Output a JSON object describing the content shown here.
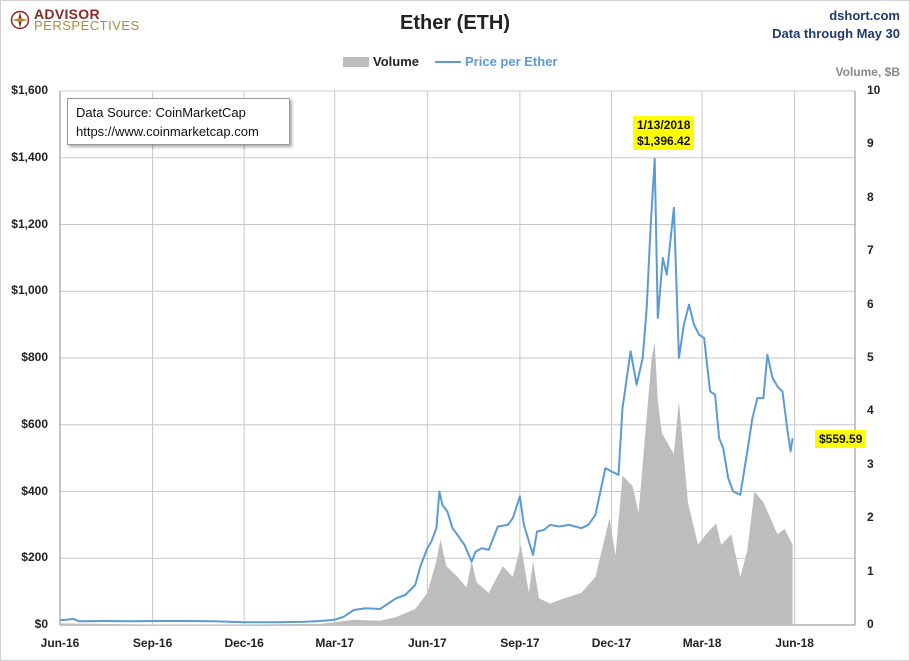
{
  "header": {
    "logo_line1": "ADVISOR",
    "logo_line2": "PERSPECTIVES",
    "title": "Ether (ETH)",
    "site": "dshort.com",
    "data_through": "Data through May 30"
  },
  "legend": {
    "volume_label": "Volume",
    "price_label": "Price per Ether"
  },
  "source_box": {
    "line1": "Data Source: CoinMarketCap",
    "line2": "https://www.coinmarketcap.com"
  },
  "colors": {
    "price_line": "#5b9bd5",
    "volume_area": "#bdbdbd",
    "callout_bg": "#ffff00"
  },
  "chart_data": {
    "type": "line",
    "title": "Ether (ETH)",
    "x_axis": {
      "range": [
        "2016-06-01",
        "2018-07-31"
      ],
      "tick_labels": [
        "Jun-16",
        "Sep-16",
        "Dec-16",
        "Mar-17",
        "Jun-17",
        "Sep-17",
        "Dec-17",
        "Mar-18",
        "Jun-18"
      ],
      "tick_dates": [
        "2016-06-01",
        "2016-09-01",
        "2016-12-01",
        "2017-03-01",
        "2017-06-01",
        "2017-09-01",
        "2017-12-01",
        "2018-03-01",
        "2018-06-01"
      ]
    },
    "y_left": {
      "range": [
        0,
        1600
      ],
      "tick_labels": [
        "$0",
        "$200",
        "$400",
        "$600",
        "$800",
        "$1,000",
        "$1,200",
        "$1,400",
        "$1,600"
      ],
      "tick_values": [
        0,
        200,
        400,
        600,
        800,
        1000,
        1200,
        1400,
        1600
      ]
    },
    "y_right": {
      "title": "Volume, $B",
      "range": [
        0,
        10
      ],
      "tick_labels": [
        "0",
        "1",
        "2",
        "3",
        "4",
        "5",
        "6",
        "7",
        "8",
        "9",
        "10"
      ],
      "tick_values": [
        0,
        1,
        2,
        3,
        4,
        5,
        6,
        7,
        8,
        9,
        10
      ]
    },
    "grid": true,
    "legend_position": "top-center",
    "series": [
      {
        "name": "Price per Ether",
        "axis": "left",
        "points": [
          [
            "2016-06-01",
            14
          ],
          [
            "2016-06-15",
            18
          ],
          [
            "2016-06-20",
            11
          ],
          [
            "2016-07-15",
            12
          ],
          [
            "2016-08-15",
            11
          ],
          [
            "2016-09-01",
            12
          ],
          [
            "2016-10-01",
            12
          ],
          [
            "2016-11-01",
            11
          ],
          [
            "2016-12-01",
            8
          ],
          [
            "2017-01-01",
            8
          ],
          [
            "2017-01-31",
            10
          ],
          [
            "2017-02-15",
            12
          ],
          [
            "2017-03-01",
            16
          ],
          [
            "2017-03-10",
            25
          ],
          [
            "2017-03-20",
            45
          ],
          [
            "2017-04-01",
            50
          ],
          [
            "2017-04-15",
            48
          ],
          [
            "2017-05-01",
            80
          ],
          [
            "2017-05-10",
            90
          ],
          [
            "2017-05-20",
            120
          ],
          [
            "2017-05-25",
            175
          ],
          [
            "2017-06-01",
            230
          ],
          [
            "2017-06-05",
            250
          ],
          [
            "2017-06-10",
            290
          ],
          [
            "2017-06-13",
            400
          ],
          [
            "2017-06-16",
            360
          ],
          [
            "2017-06-21",
            340
          ],
          [
            "2017-06-26",
            290
          ],
          [
            "2017-07-01",
            270
          ],
          [
            "2017-07-08",
            240
          ],
          [
            "2017-07-15",
            190
          ],
          [
            "2017-07-19",
            220
          ],
          [
            "2017-07-25",
            230
          ],
          [
            "2017-08-01",
            225
          ],
          [
            "2017-08-10",
            295
          ],
          [
            "2017-08-20",
            300
          ],
          [
            "2017-08-25",
            320
          ],
          [
            "2017-09-01",
            385
          ],
          [
            "2017-09-05",
            300
          ],
          [
            "2017-09-14",
            210
          ],
          [
            "2017-09-18",
            280
          ],
          [
            "2017-09-25",
            285
          ],
          [
            "2017-10-01",
            300
          ],
          [
            "2017-10-10",
            295
          ],
          [
            "2017-10-20",
            300
          ],
          [
            "2017-11-01",
            290
          ],
          [
            "2017-11-08",
            300
          ],
          [
            "2017-11-15",
            330
          ],
          [
            "2017-11-25",
            470
          ],
          [
            "2017-12-01",
            460
          ],
          [
            "2017-12-08",
            450
          ],
          [
            "2017-12-12",
            650
          ],
          [
            "2017-12-20",
            820
          ],
          [
            "2017-12-26",
            720
          ],
          [
            "2018-01-01",
            800
          ],
          [
            "2018-01-05",
            950
          ],
          [
            "2018-01-09",
            1200
          ],
          [
            "2018-01-13",
            1396.42
          ],
          [
            "2018-01-16",
            920
          ],
          [
            "2018-01-21",
            1100
          ],
          [
            "2018-01-25",
            1050
          ],
          [
            "2018-02-01",
            1250
          ],
          [
            "2018-02-06",
            800
          ],
          [
            "2018-02-11",
            900
          ],
          [
            "2018-02-16",
            960
          ],
          [
            "2018-02-21",
            900
          ],
          [
            "2018-02-26",
            870
          ],
          [
            "2018-03-03",
            860
          ],
          [
            "2018-03-09",
            700
          ],
          [
            "2018-03-14",
            690
          ],
          [
            "2018-03-18",
            560
          ],
          [
            "2018-03-22",
            530
          ],
          [
            "2018-03-27",
            440
          ],
          [
            "2018-04-01",
            400
          ],
          [
            "2018-04-08",
            390
          ],
          [
            "2018-04-15",
            520
          ],
          [
            "2018-04-20",
            620
          ],
          [
            "2018-04-25",
            680
          ],
          [
            "2018-05-01",
            680
          ],
          [
            "2018-05-05",
            810
          ],
          [
            "2018-05-10",
            740
          ],
          [
            "2018-05-16",
            710
          ],
          [
            "2018-05-20",
            700
          ],
          [
            "2018-05-25",
            580
          ],
          [
            "2018-05-28",
            520
          ],
          [
            "2018-05-30",
            559.59
          ]
        ]
      },
      {
        "name": "Volume",
        "axis": "right",
        "type": "area",
        "points": [
          [
            "2016-06-01",
            0.03
          ],
          [
            "2016-09-01",
            0.01
          ],
          [
            "2016-12-01",
            0.01
          ],
          [
            "2017-02-15",
            0.02
          ],
          [
            "2017-03-01",
            0.05
          ],
          [
            "2017-03-20",
            0.1
          ],
          [
            "2017-04-15",
            0.08
          ],
          [
            "2017-05-01",
            0.15
          ],
          [
            "2017-05-20",
            0.3
          ],
          [
            "2017-06-01",
            0.6
          ],
          [
            "2017-06-10",
            1.2
          ],
          [
            "2017-06-14",
            1.6
          ],
          [
            "2017-06-20",
            1.1
          ],
          [
            "2017-07-01",
            0.9
          ],
          [
            "2017-07-10",
            0.7
          ],
          [
            "2017-07-15",
            1.2
          ],
          [
            "2017-07-20",
            0.8
          ],
          [
            "2017-08-01",
            0.6
          ],
          [
            "2017-08-15",
            1.1
          ],
          [
            "2017-08-25",
            0.9
          ],
          [
            "2017-09-02",
            1.5
          ],
          [
            "2017-09-10",
            0.6
          ],
          [
            "2017-09-14",
            1.2
          ],
          [
            "2017-09-20",
            0.5
          ],
          [
            "2017-10-01",
            0.4
          ],
          [
            "2017-10-15",
            0.5
          ],
          [
            "2017-11-01",
            0.6
          ],
          [
            "2017-11-15",
            0.9
          ],
          [
            "2017-11-29",
            2.0
          ],
          [
            "2017-12-05",
            1.3
          ],
          [
            "2017-12-12",
            2.8
          ],
          [
            "2017-12-22",
            2.6
          ],
          [
            "2017-12-28",
            2.1
          ],
          [
            "2018-01-05",
            3.9
          ],
          [
            "2018-01-10",
            5.0
          ],
          [
            "2018-01-13",
            5.3
          ],
          [
            "2018-01-16",
            4.2
          ],
          [
            "2018-01-20",
            3.6
          ],
          [
            "2018-02-01",
            3.2
          ],
          [
            "2018-02-06",
            4.2
          ],
          [
            "2018-02-15",
            2.3
          ],
          [
            "2018-02-25",
            1.5
          ],
          [
            "2018-03-05",
            1.7
          ],
          [
            "2018-03-15",
            1.9
          ],
          [
            "2018-03-20",
            1.5
          ],
          [
            "2018-03-30",
            1.7
          ],
          [
            "2018-04-08",
            0.9
          ],
          [
            "2018-04-15",
            1.4
          ],
          [
            "2018-04-22",
            2.5
          ],
          [
            "2018-05-01",
            2.3
          ],
          [
            "2018-05-08",
            2.0
          ],
          [
            "2018-05-15",
            1.7
          ],
          [
            "2018-05-22",
            1.8
          ],
          [
            "2018-05-30",
            1.5
          ]
        ]
      }
    ],
    "annotations": [
      {
        "date": "2018-01-13",
        "value": 1396.42,
        "line1": "1/13/2018",
        "line2": "$1,396.42"
      },
      {
        "date": "2018-05-30",
        "value": 559.59,
        "line1": "$559.59"
      }
    ]
  }
}
